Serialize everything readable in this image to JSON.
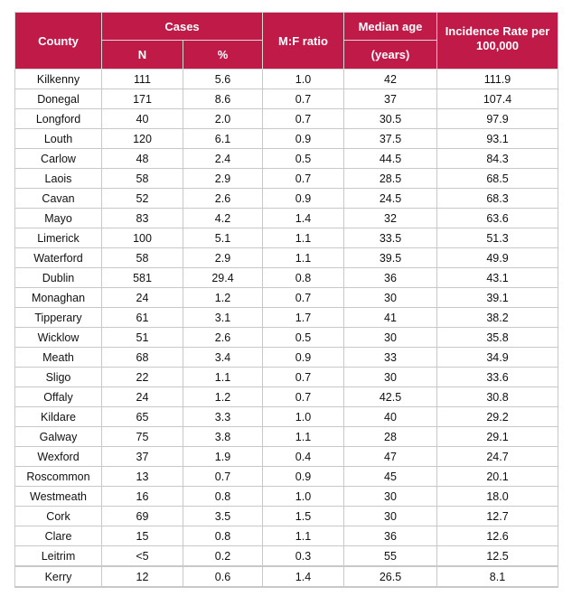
{
  "header": {
    "county": "County",
    "cases": "Cases",
    "n": "N",
    "pct": "%",
    "mf": "M:F ratio",
    "median_age": "Median age",
    "years": "(years)",
    "incidence": "Incidence Rate per 100,000"
  },
  "rows": [
    [
      "Kilkenny",
      "111",
      "5.6",
      "1.0",
      "42",
      "111.9"
    ],
    [
      "Donegal",
      "171",
      "8.6",
      "0.7",
      "37",
      "107.4"
    ],
    [
      "Longford",
      "40",
      "2.0",
      "0.7",
      "30.5",
      "97.9"
    ],
    [
      "Louth",
      "120",
      "6.1",
      "0.9",
      "37.5",
      "93.1"
    ],
    [
      "Carlow",
      "48",
      "2.4",
      "0.5",
      "44.5",
      "84.3"
    ],
    [
      "Laois",
      "58",
      "2.9",
      "0.7",
      "28.5",
      "68.5"
    ],
    [
      "Cavan",
      "52",
      "2.6",
      "0.9",
      "24.5",
      "68.3"
    ],
    [
      "Mayo",
      "83",
      "4.2",
      "1.4",
      "32",
      "63.6"
    ],
    [
      "Limerick",
      "100",
      "5.1",
      "1.1",
      "33.5",
      "51.3"
    ],
    [
      "Waterford",
      "58",
      "2.9",
      "1.1",
      "39.5",
      "49.9"
    ],
    [
      "Dublin",
      "581",
      "29.4",
      "0.8",
      "36",
      "43.1"
    ],
    [
      "Monaghan",
      "24",
      "1.2",
      "0.7",
      "30",
      "39.1"
    ],
    [
      "Tipperary",
      "61",
      "3.1",
      "1.7",
      "41",
      "38.2"
    ],
    [
      "Wicklow",
      "51",
      "2.6",
      "0.5",
      "30",
      "35.8"
    ],
    [
      "Meath",
      "68",
      "3.4",
      "0.9",
      "33",
      "34.9"
    ],
    [
      "Sligo",
      "22",
      "1.1",
      "0.7",
      "30",
      "33.6"
    ],
    [
      "Offaly",
      "24",
      "1.2",
      "0.7",
      "42.5",
      "30.8"
    ],
    [
      "Kildare",
      "65",
      "3.3",
      "1.0",
      "40",
      "29.2"
    ],
    [
      "Galway",
      "75",
      "3.8",
      "1.1",
      "28",
      "29.1"
    ],
    [
      "Wexford",
      "37",
      "1.9",
      "0.4",
      "47",
      "24.7"
    ],
    [
      "Roscommon",
      "13",
      "0.7",
      "0.9",
      "45",
      "20.1"
    ],
    [
      "Westmeath",
      "16",
      "0.8",
      "1.0",
      "30",
      "18.0"
    ],
    [
      "Cork",
      "69",
      "3.5",
      "1.5",
      "30",
      "12.7"
    ],
    [
      "Clare",
      "15",
      "0.8",
      "1.1",
      "36",
      "12.6"
    ],
    [
      "Leitrim",
      "<5",
      "0.2",
      "0.3",
      "55",
      "12.5"
    ],
    [
      "Kerry",
      "12",
      "0.6",
      "1.4",
      "26.5",
      "8.1"
    ]
  ],
  "colors": {
    "header_bg": "#c01a48"
  }
}
